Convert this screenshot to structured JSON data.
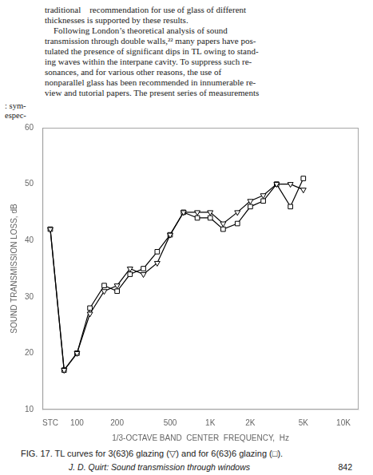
{
  "chart_data": {
    "type": "line",
    "title": "FIG. 17. TL curves for 3(63)6 glazing (▽) and for 6(63)6 glazing (□).",
    "x_label": "1/3-OCTAVE BAND  CENTER  FREQUENCY,  Hz",
    "y_label": "SOUND TRANSMISSION LOSS, dB",
    "annotations": [
      "traditional    recommendation for use of glass of different",
      "thicknesses is supported by these results.",
      "    Following London’s theoretical analysis of sound",
      "transmission through double walls,²² many papers have pos-",
      "tulated the presence of significant dips in TL owing to stand-",
      "ing waves within the interpane cavity. To suppress such re-",
      "sonances, and for various other reasons, the use of",
      "nonparallel glass has been recommended in innumerable re-",
      "view and tutorial papers. The present series of measurements",
      ": sym-",
      "espec-",
      "J. D. Quirt: Sound transmission through windows",
      "842"
    ],
    "x": [
      63,
      80,
      100,
      125,
      160,
      200,
      250,
      315,
      400,
      500,
      630,
      800,
      1000,
      1250,
      1600,
      2000,
      2500,
      3150,
      4000,
      5000
    ],
    "series": [
      {
        "color": "#000000",
        "marker": "triangle_down",
        "values": [
          42,
          17,
          20,
          27,
          31,
          32,
          35,
          34,
          36,
          41,
          45,
          45,
          45,
          43,
          45,
          47,
          48,
          50,
          50,
          49
        ]
      },
      {
        "color": "#000000",
        "marker": "square",
        "values": [
          42,
          17,
          20,
          28,
          32,
          31,
          34,
          35,
          38,
          41,
          45,
          44,
          44,
          42,
          43,
          46,
          47,
          50,
          46,
          51
        ]
      }
    ],
    "log": "x",
    "xlim": [
      55,
      13000
    ],
    "xticks": [
      {
        "value": 63,
        "label": "STC"
      },
      100,
      200,
      500,
      {
        "value": 1000,
        "label": "1K"
      },
      {
        "value": 2000,
        "label": "2K"
      },
      {
        "value": 5000,
        "label": "5K"
      },
      {
        "value": 10000,
        "label": "10K"
      }
    ],
    "ylim": [
      10,
      60
    ],
    "yticks": [
      10,
      20,
      30,
      40,
      50,
      60
    ],
    "grid": false
  }
}
